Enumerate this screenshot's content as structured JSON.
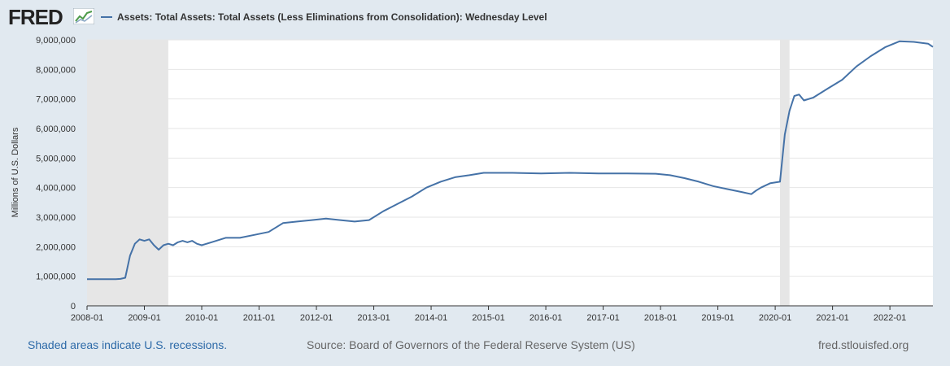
{
  "header": {
    "logo_text": "FRED",
    "series_title": "Assets: Total Assets: Total Assets (Less Eliminations from Consolidation): Wednesday Level"
  },
  "footer": {
    "recession_note": "Shaded areas indicate U.S. recessions.",
    "source": "Source: Board of Governors of the Federal Reserve System (US)",
    "site": "fred.stlouisfed.org"
  },
  "colors": {
    "series_line": "#4572a7",
    "recession_shade": "#e6e6e6",
    "plot_background": "#ffffff",
    "page_background": "#e1e9f0"
  },
  "icons": [
    "fred-logo-graph-icon"
  ],
  "chart_data": {
    "type": "line",
    "title": "Assets: Total Assets: Total Assets (Less Eliminations from Consolidation): Wednesday Level",
    "ylabel": "Millions of U.S. Dollars",
    "xlabel": "",
    "ylim": [
      0,
      9000000
    ],
    "xlim": [
      "2008-01",
      "2022-10"
    ],
    "yticks": [
      0,
      1000000,
      2000000,
      3000000,
      4000000,
      5000000,
      6000000,
      7000000,
      8000000,
      9000000
    ],
    "ytick_labels": [
      "0",
      "1,000,000",
      "2,000,000",
      "3,000,000",
      "4,000,000",
      "5,000,000",
      "6,000,000",
      "7,000,000",
      "8,000,000",
      "9,000,000"
    ],
    "xticks": [
      "2008-01",
      "2009-01",
      "2010-01",
      "2011-01",
      "2012-01",
      "2013-01",
      "2014-01",
      "2015-01",
      "2016-01",
      "2017-01",
      "2018-01",
      "2019-01",
      "2020-01",
      "2021-01",
      "2022-01"
    ],
    "grid": "horizontal",
    "recessions": [
      {
        "start": "2008-01",
        "end": "2009-06"
      },
      {
        "start": "2020-02",
        "end": "2020-04"
      }
    ],
    "series": [
      {
        "name": "Assets: Total Assets: Total Assets (Less Eliminations from Consolidation): Wednesday Level",
        "points": [
          [
            "2008-01",
            900000
          ],
          [
            "2008-04",
            900000
          ],
          [
            "2008-07",
            900000
          ],
          [
            "2008-08",
            910000
          ],
          [
            "2008-09",
            950000
          ],
          [
            "2008-10",
            1700000
          ],
          [
            "2008-11",
            2100000
          ],
          [
            "2008-12",
            2250000
          ],
          [
            "2009-01",
            2200000
          ],
          [
            "2009-02",
            2250000
          ],
          [
            "2009-03",
            2050000
          ],
          [
            "2009-04",
            1900000
          ],
          [
            "2009-05",
            2050000
          ],
          [
            "2009-06",
            2100000
          ],
          [
            "2009-07",
            2050000
          ],
          [
            "2009-08",
            2150000
          ],
          [
            "2009-09",
            2200000
          ],
          [
            "2009-10",
            2150000
          ],
          [
            "2009-11",
            2200000
          ],
          [
            "2009-12",
            2100000
          ],
          [
            "2010-01",
            2050000
          ],
          [
            "2010-03",
            2150000
          ],
          [
            "2010-06",
            2300000
          ],
          [
            "2010-09",
            2300000
          ],
          [
            "2010-12",
            2400000
          ],
          [
            "2011-03",
            2500000
          ],
          [
            "2011-06",
            2800000
          ],
          [
            "2011-09",
            2850000
          ],
          [
            "2011-12",
            2900000
          ],
          [
            "2012-03",
            2950000
          ],
          [
            "2012-06",
            2900000
          ],
          [
            "2012-09",
            2850000
          ],
          [
            "2012-12",
            2900000
          ],
          [
            "2013-03",
            3200000
          ],
          [
            "2013-06",
            3450000
          ],
          [
            "2013-09",
            3700000
          ],
          [
            "2013-12",
            4000000
          ],
          [
            "2014-03",
            4200000
          ],
          [
            "2014-06",
            4350000
          ],
          [
            "2014-09",
            4420000
          ],
          [
            "2014-12",
            4500000
          ],
          [
            "2015-06",
            4500000
          ],
          [
            "2015-12",
            4480000
          ],
          [
            "2016-06",
            4500000
          ],
          [
            "2016-12",
            4480000
          ],
          [
            "2017-06",
            4480000
          ],
          [
            "2017-12",
            4470000
          ],
          [
            "2018-03",
            4420000
          ],
          [
            "2018-06",
            4320000
          ],
          [
            "2018-09",
            4200000
          ],
          [
            "2018-12",
            4050000
          ],
          [
            "2019-03",
            3950000
          ],
          [
            "2019-06",
            3850000
          ],
          [
            "2019-08",
            3780000
          ],
          [
            "2019-09",
            3900000
          ],
          [
            "2019-10",
            4000000
          ],
          [
            "2019-12",
            4150000
          ],
          [
            "2020-02",
            4200000
          ],
          [
            "2020-03",
            5800000
          ],
          [
            "2020-04",
            6600000
          ],
          [
            "2020-05",
            7100000
          ],
          [
            "2020-06",
            7150000
          ],
          [
            "2020-07",
            6950000
          ],
          [
            "2020-09",
            7050000
          ],
          [
            "2020-12",
            7350000
          ],
          [
            "2021-03",
            7650000
          ],
          [
            "2021-06",
            8100000
          ],
          [
            "2021-09",
            8450000
          ],
          [
            "2021-12",
            8750000
          ],
          [
            "2022-03",
            8950000
          ],
          [
            "2022-06",
            8930000
          ],
          [
            "2022-09",
            8870000
          ],
          [
            "2022-10",
            8760000
          ]
        ]
      }
    ]
  }
}
